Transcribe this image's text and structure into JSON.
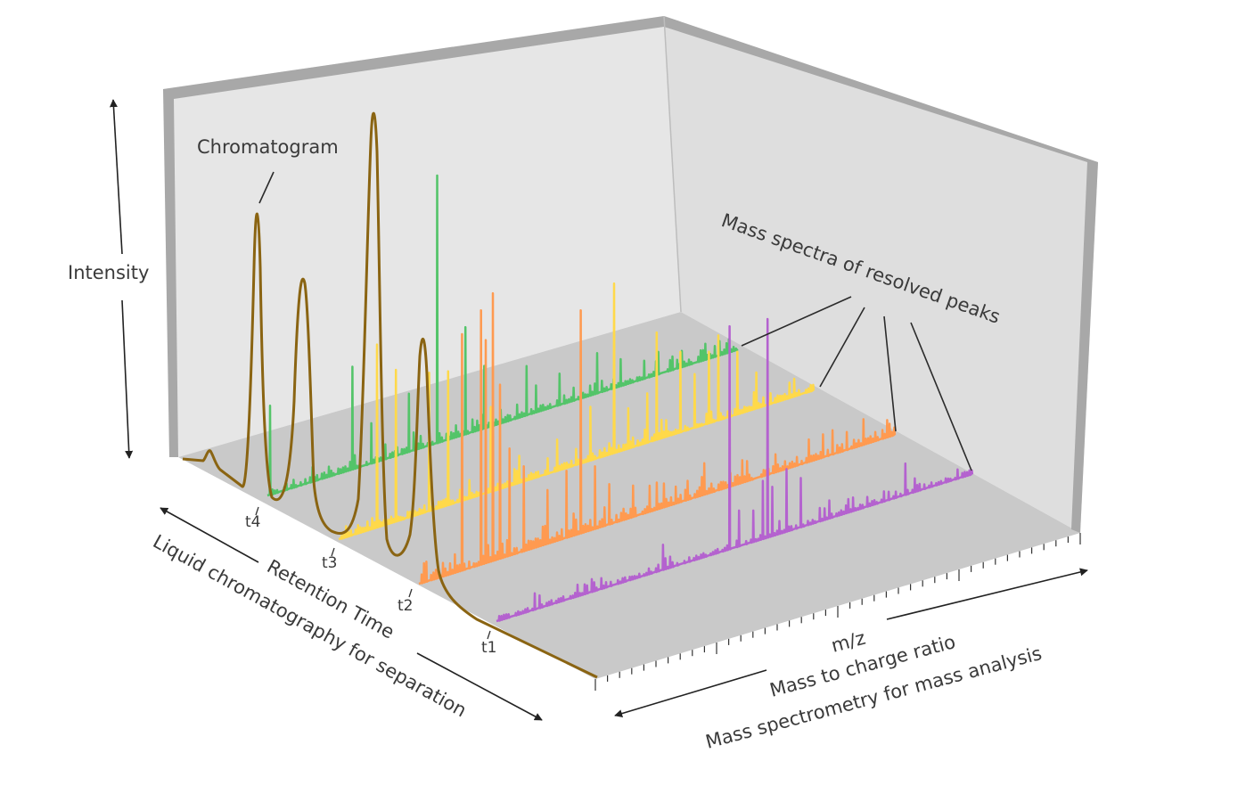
{
  "labels": {
    "intensity": "Intensity",
    "chromatogram": "Chromatogram",
    "mass_spectra": "Mass spectra of resolved peaks",
    "retention_time": "Retention Time",
    "lc_separation": "Liquid chromatography for separation",
    "mz": "m/z",
    "mass_to_charge": "Mass to charge ratio",
    "ms_analysis": "Mass spectrometry for mass analysis"
  },
  "time_ticks": [
    "t1",
    "t2",
    "t3",
    "t4"
  ],
  "colors": {
    "chromatogram": "#8a6412",
    "spectrum_t4": "#53c469",
    "spectrum_t3": "#ffd94a",
    "spectrum_t2": "#ff9a50",
    "spectrum_t1": "#b462cf",
    "floor": "#c8c8c8",
    "back_wall": "#e4e4e4",
    "side_wall": "#dcdcdc",
    "wall_edge": "#a9a9a9"
  }
}
